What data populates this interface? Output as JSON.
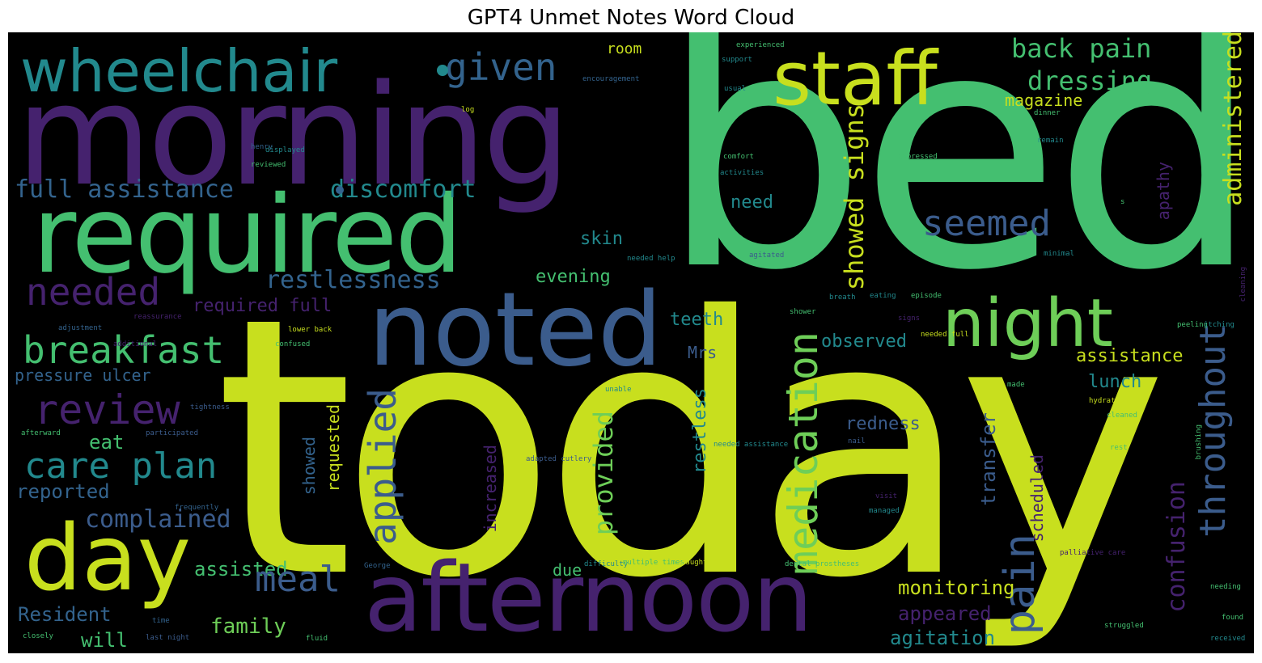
{
  "title": "GPT4 Unmet Notes Word Cloud",
  "palette": {
    "yellow": "#c8df1e",
    "green": "#44bf70",
    "teal": "#22898d",
    "blue": "#3b5c8c",
    "purple": "#45226e",
    "lightgreen": "#6ece58",
    "slate": "#33638d"
  },
  "words": {
    "today": "today",
    "bed": "bed",
    "morning": "morning",
    "required": "required",
    "noted": "noted",
    "afternoon": "afternoon",
    "day": "day",
    "wheelchair": "wheelchair",
    "staff": "staff",
    "night": "night",
    "breakfast": "breakfast",
    "given": "given",
    "back_pain": "back pain",
    "dressing": "dressing",
    "administered": "administered",
    "seemed": "seemed",
    "full_assistance": "full assistance",
    "discomfort": "discomfort",
    "needed": "needed",
    "restlessness": "restlessness",
    "required_full": "required full",
    "pressure_ulcer": "pressure ulcer",
    "review": "review",
    "care_plan": "care plan",
    "eat": "eat",
    "reported": "reported",
    "complained": "complained",
    "assisted": "assisted",
    "resident": "Resident",
    "will": "will",
    "family": "family",
    "meal": "meal",
    "applied": "applied",
    "provided": "provided",
    "medication": "medication",
    "showed_signs": "showed signs",
    "pain": "pain",
    "throughout": "throughout",
    "confusion": "confusion",
    "assistance": "assistance",
    "lunch": "lunch",
    "transfer": "transfer",
    "scheduled": "scheduled",
    "monitoring": "monitoring",
    "appeared": "appeared",
    "agitation": "agitation",
    "observed": "observed",
    "redness": "redness",
    "teeth": "teeth",
    "mrs": "Mrs",
    "need": "need",
    "skin": "skin",
    "evening": "evening",
    "room": "room",
    "magazine": "magazine",
    "apathy": "apathy",
    "restless": "restless",
    "showed": "showed",
    "requested": "requested",
    "increased": "increased",
    "due": "due",
    "experienced": "experienced",
    "support": "support",
    "encouragement": "encouragement",
    "usual": "usual",
    "dinner": "dinner",
    "log": "log",
    "comfort": "comfort",
    "expressed": "expressed",
    "remain": "remain",
    "activities": "activities",
    "henry": "henry",
    "displayed": "displayed",
    "reviewed": "reviewed",
    "needed_help": "needed help",
    "minimal": "minimal",
    "agitated": "agitated",
    "breath": "breath",
    "eating": "eating",
    "episode": "episode",
    "shower": "shower",
    "lower_back": "lower back",
    "reassurance": "reassurance",
    "adjustment": "adjustment",
    "additional": "additional",
    "signs": "signs",
    "needed_full": "needed full",
    "peeling": "peeling",
    "itching": "itching",
    "confused": "confused",
    "made": "made",
    "hydration": "hydration",
    "unable": "unable",
    "tightness": "tightness",
    "afterward": "afterward",
    "participated": "participated",
    "nail": "nail",
    "needed_assistance": "needed assistance",
    "adapted_cutlery": "adapted cutlery",
    "cleaned": "cleaned",
    "rest": "rest",
    "frequently": "frequently",
    "palliative_care": "palliative care",
    "difficulty": "difficulty",
    "multiple_times": "multiple times",
    "daughter": "daughter",
    "dental_prostheses": "dental prostheses",
    "george": "George",
    "struggled": "struggled",
    "found": "found",
    "received": "received",
    "last_night": "last night",
    "fluid": "fluid",
    "closely": "closely",
    "time": "time",
    "cleaning": "cleaning",
    "needing": "needing",
    "brushing": "brushing",
    "visit": "visit",
    "managed": "managed",
    "s": "s"
  }
}
